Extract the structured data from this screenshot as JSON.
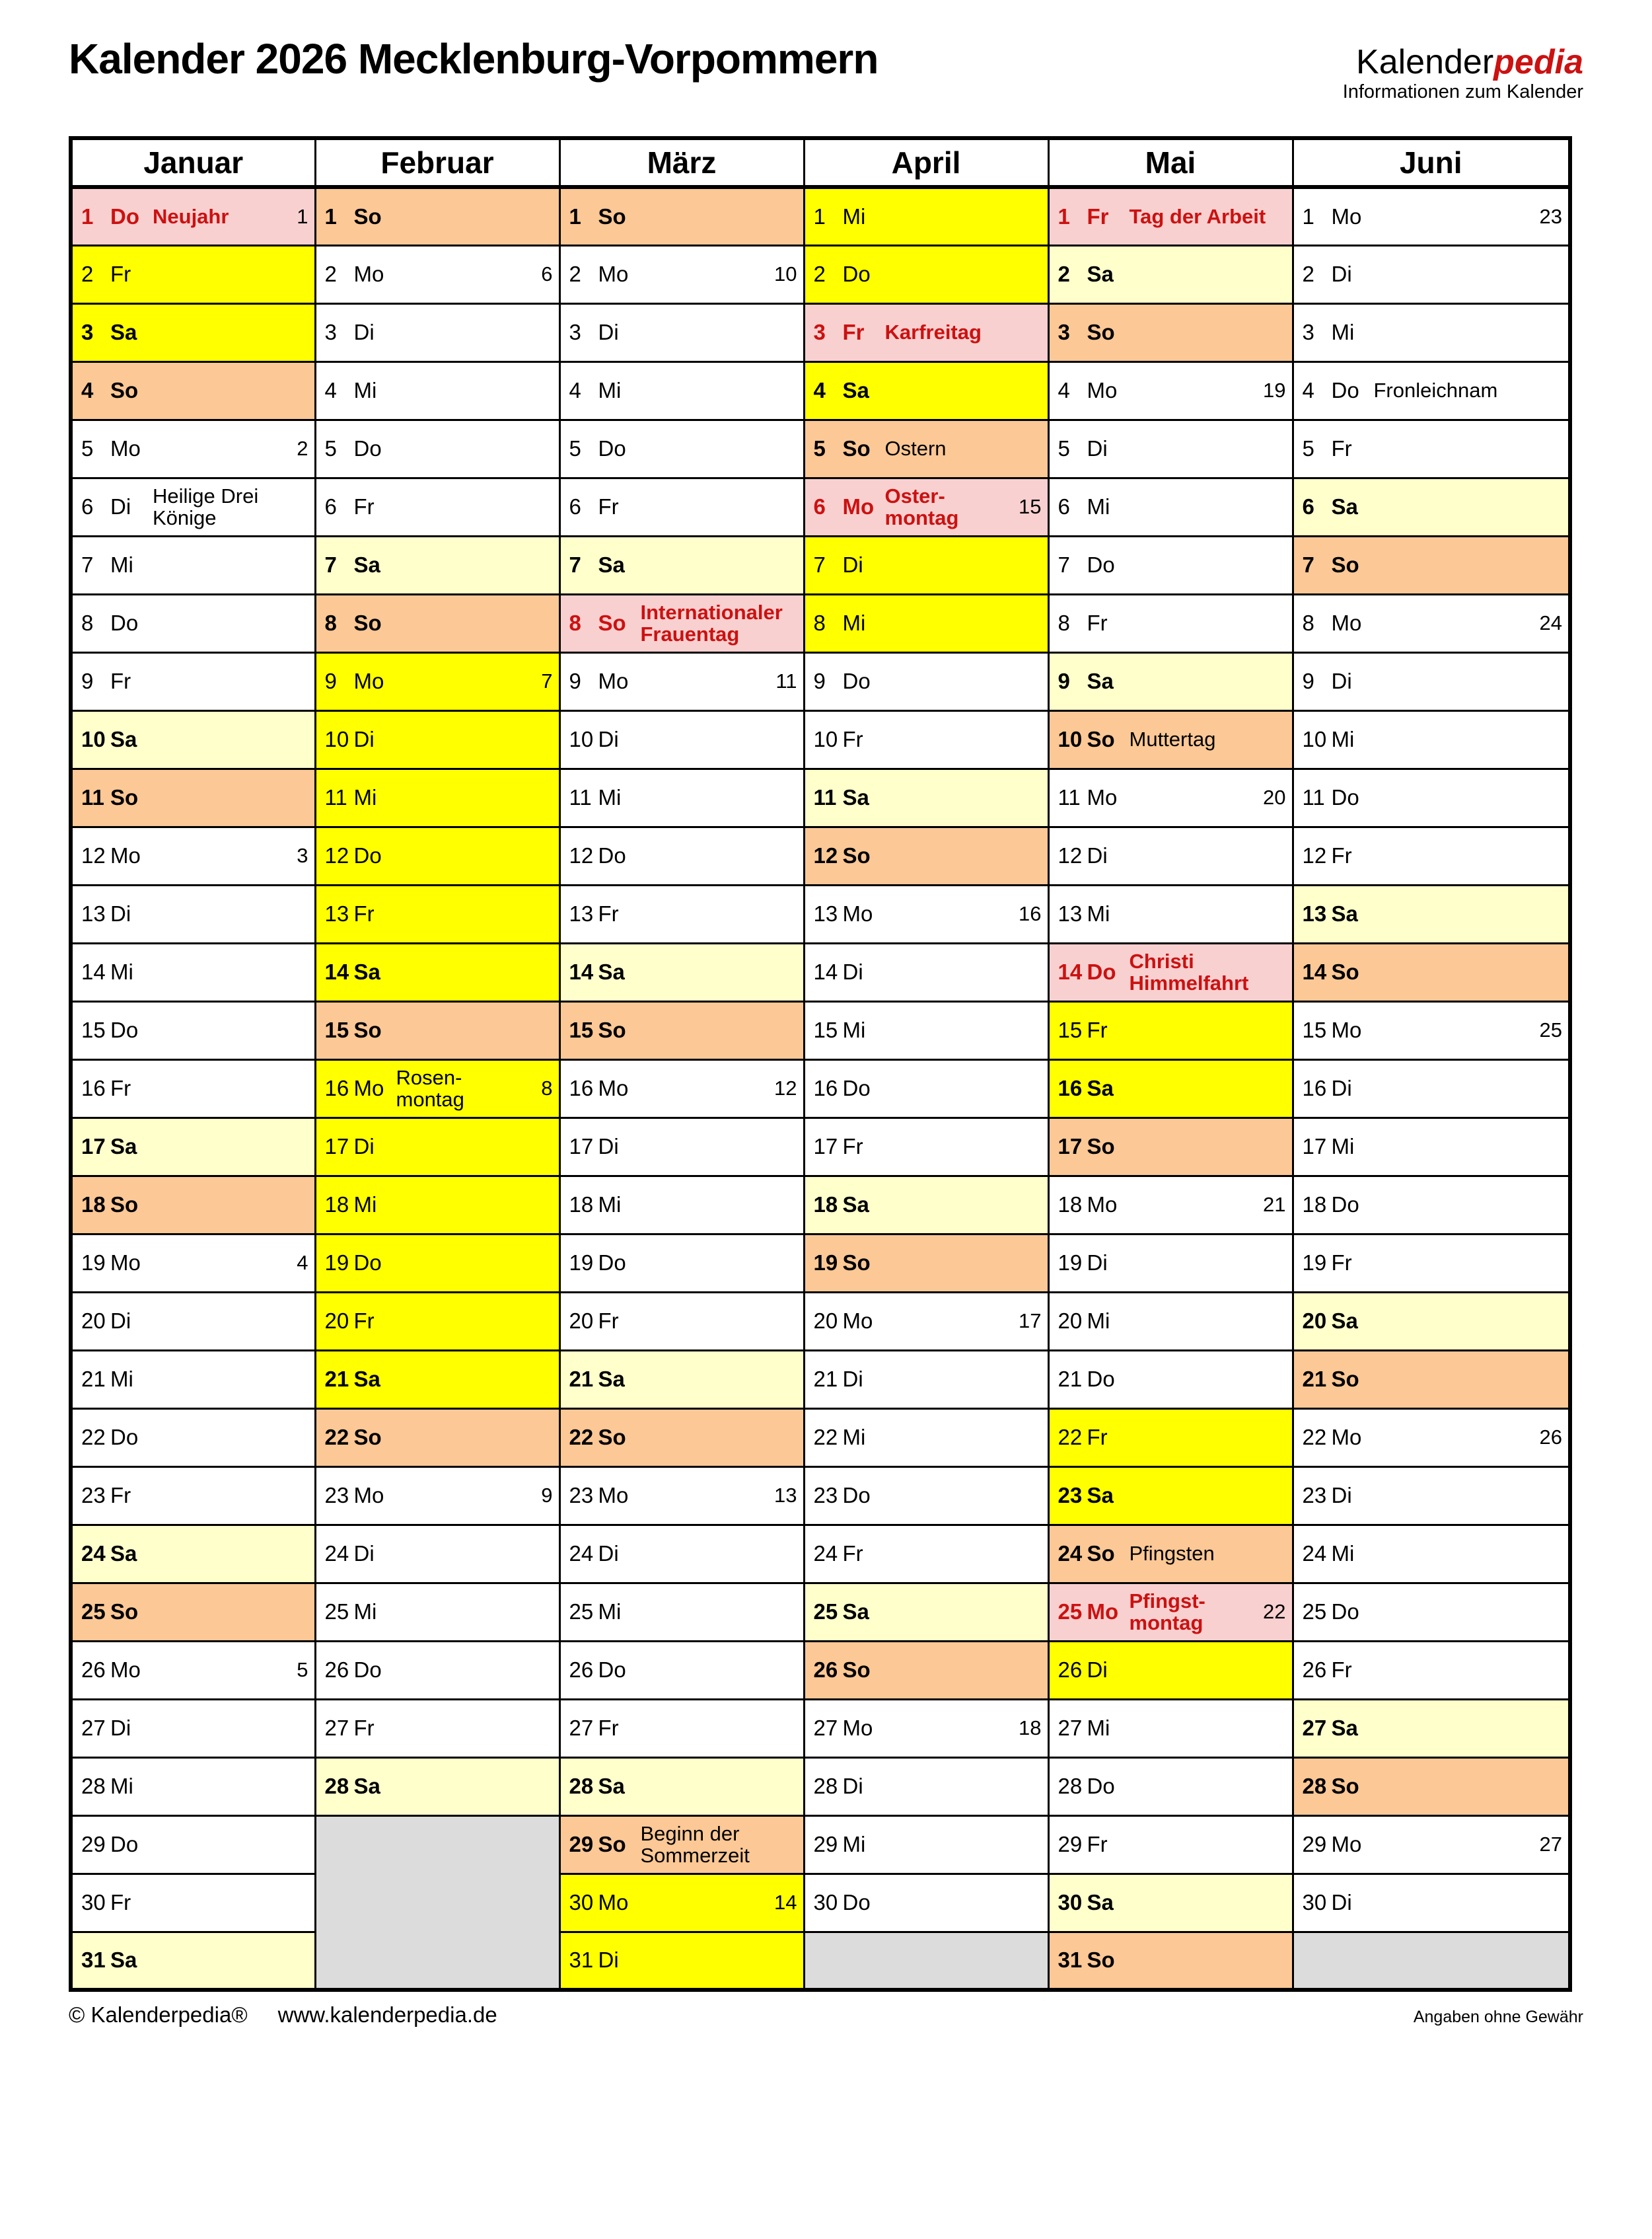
{
  "title": "Kalender 2026 Mecklenburg-Vorpommern",
  "logo": {
    "part1": "Kalender",
    "part2": "pedia",
    "subtitle": "Informationen zum Kalender"
  },
  "footer": {
    "copyright": "© Kalenderpedia®",
    "url": "www.kalenderpedia.de",
    "disclaimer": "Angaben ohne Gewähr"
  },
  "colors": {
    "sunday": "#FBC896",
    "saturday": "#FFFFCC",
    "vacation": "#FFFF00",
    "holiday": "#F9D0D0",
    "empty": "#DCDCDC",
    "red": "#CC1111"
  },
  "table": {
    "rows": 31,
    "months": [
      {
        "name": "Januar",
        "days": [
          {
            "d": 1,
            "wd": "Do",
            "bg": "ho",
            "b": 1,
            "r": 1,
            "n": [
              "Neujahr"
            ],
            "w": "1"
          },
          {
            "d": 2,
            "wd": "Fr",
            "bg": "fe"
          },
          {
            "d": 3,
            "wd": "Sa",
            "bg": "fe",
            "b": 1
          },
          {
            "d": 4,
            "wd": "So",
            "bg": "su",
            "b": 1
          },
          {
            "d": 5,
            "wd": "Mo",
            "w": "2"
          },
          {
            "d": 6,
            "wd": "Di",
            "n": [
              "Heilige Drei",
              "Könige"
            ]
          },
          {
            "d": 7,
            "wd": "Mi"
          },
          {
            "d": 8,
            "wd": "Do"
          },
          {
            "d": 9,
            "wd": "Fr"
          },
          {
            "d": 10,
            "wd": "Sa",
            "bg": "sa",
            "b": 1
          },
          {
            "d": 11,
            "wd": "So",
            "bg": "su",
            "b": 1
          },
          {
            "d": 12,
            "wd": "Mo",
            "w": "3"
          },
          {
            "d": 13,
            "wd": "Di"
          },
          {
            "d": 14,
            "wd": "Mi"
          },
          {
            "d": 15,
            "wd": "Do"
          },
          {
            "d": 16,
            "wd": "Fr"
          },
          {
            "d": 17,
            "wd": "Sa",
            "bg": "sa",
            "b": 1
          },
          {
            "d": 18,
            "wd": "So",
            "bg": "su",
            "b": 1
          },
          {
            "d": 19,
            "wd": "Mo",
            "w": "4"
          },
          {
            "d": 20,
            "wd": "Di"
          },
          {
            "d": 21,
            "wd": "Mi"
          },
          {
            "d": 22,
            "wd": "Do"
          },
          {
            "d": 23,
            "wd": "Fr"
          },
          {
            "d": 24,
            "wd": "Sa",
            "bg": "sa",
            "b": 1
          },
          {
            "d": 25,
            "wd": "So",
            "bg": "su",
            "b": 1
          },
          {
            "d": 26,
            "wd": "Mo",
            "w": "5"
          },
          {
            "d": 27,
            "wd": "Di"
          },
          {
            "d": 28,
            "wd": "Mi"
          },
          {
            "d": 29,
            "wd": "Do"
          },
          {
            "d": 30,
            "wd": "Fr"
          },
          {
            "d": 31,
            "wd": "Sa",
            "bg": "sa",
            "b": 1
          }
        ]
      },
      {
        "name": "Februar",
        "days": [
          {
            "d": 1,
            "wd": "So",
            "bg": "su",
            "b": 1
          },
          {
            "d": 2,
            "wd": "Mo",
            "w": "6"
          },
          {
            "d": 3,
            "wd": "Di"
          },
          {
            "d": 4,
            "wd": "Mi"
          },
          {
            "d": 5,
            "wd": "Do"
          },
          {
            "d": 6,
            "wd": "Fr"
          },
          {
            "d": 7,
            "wd": "Sa",
            "bg": "sa",
            "b": 1
          },
          {
            "d": 8,
            "wd": "So",
            "bg": "su",
            "b": 1
          },
          {
            "d": 9,
            "wd": "Mo",
            "bg": "fe",
            "w": "7"
          },
          {
            "d": 10,
            "wd": "Di",
            "bg": "fe"
          },
          {
            "d": 11,
            "wd": "Mi",
            "bg": "fe"
          },
          {
            "d": 12,
            "wd": "Do",
            "bg": "fe"
          },
          {
            "d": 13,
            "wd": "Fr",
            "bg": "fe"
          },
          {
            "d": 14,
            "wd": "Sa",
            "bg": "fe",
            "b": 1
          },
          {
            "d": 15,
            "wd": "So",
            "bg": "su",
            "b": 1
          },
          {
            "d": 16,
            "wd": "Mo",
            "bg": "fe",
            "n": [
              "Rosen-",
              "montag"
            ],
            "w": "8"
          },
          {
            "d": 17,
            "wd": "Di",
            "bg": "fe"
          },
          {
            "d": 18,
            "wd": "Mi",
            "bg": "fe"
          },
          {
            "d": 19,
            "wd": "Do",
            "bg": "fe"
          },
          {
            "d": 20,
            "wd": "Fr",
            "bg": "fe"
          },
          {
            "d": 21,
            "wd": "Sa",
            "bg": "fe",
            "b": 1
          },
          {
            "d": 22,
            "wd": "So",
            "bg": "su",
            "b": 1
          },
          {
            "d": 23,
            "wd": "Mo",
            "w": "9"
          },
          {
            "d": 24,
            "wd": "Di"
          },
          {
            "d": 25,
            "wd": "Mi"
          },
          {
            "d": 26,
            "wd": "Do"
          },
          {
            "d": 27,
            "wd": "Fr"
          },
          {
            "d": 28,
            "wd": "Sa",
            "bg": "sa",
            "b": 1
          }
        ]
      },
      {
        "name": "März",
        "days": [
          {
            "d": 1,
            "wd": "So",
            "bg": "su",
            "b": 1
          },
          {
            "d": 2,
            "wd": "Mo",
            "w": "10"
          },
          {
            "d": 3,
            "wd": "Di"
          },
          {
            "d": 4,
            "wd": "Mi"
          },
          {
            "d": 5,
            "wd": "Do"
          },
          {
            "d": 6,
            "wd": "Fr"
          },
          {
            "d": 7,
            "wd": "Sa",
            "bg": "sa",
            "b": 1
          },
          {
            "d": 8,
            "wd": "So",
            "bg": "ho",
            "b": 1,
            "r": 1,
            "n": [
              "Internationaler",
              "Frauentag"
            ]
          },
          {
            "d": 9,
            "wd": "Mo",
            "w": "11"
          },
          {
            "d": 10,
            "wd": "Di"
          },
          {
            "d": 11,
            "wd": "Mi"
          },
          {
            "d": 12,
            "wd": "Do"
          },
          {
            "d": 13,
            "wd": "Fr"
          },
          {
            "d": 14,
            "wd": "Sa",
            "bg": "sa",
            "b": 1
          },
          {
            "d": 15,
            "wd": "So",
            "bg": "su",
            "b": 1
          },
          {
            "d": 16,
            "wd": "Mo",
            "w": "12"
          },
          {
            "d": 17,
            "wd": "Di"
          },
          {
            "d": 18,
            "wd": "Mi"
          },
          {
            "d": 19,
            "wd": "Do"
          },
          {
            "d": 20,
            "wd": "Fr"
          },
          {
            "d": 21,
            "wd": "Sa",
            "bg": "sa",
            "b": 1
          },
          {
            "d": 22,
            "wd": "So",
            "bg": "su",
            "b": 1
          },
          {
            "d": 23,
            "wd": "Mo",
            "w": "13"
          },
          {
            "d": 24,
            "wd": "Di"
          },
          {
            "d": 25,
            "wd": "Mi"
          },
          {
            "d": 26,
            "wd": "Do"
          },
          {
            "d": 27,
            "wd": "Fr"
          },
          {
            "d": 28,
            "wd": "Sa",
            "bg": "sa",
            "b": 1
          },
          {
            "d": 29,
            "wd": "So",
            "bg": "su",
            "b": 1,
            "n": [
              "Beginn der",
              "Sommerzeit"
            ]
          },
          {
            "d": 30,
            "wd": "Mo",
            "bg": "fe",
            "w": "14"
          },
          {
            "d": 31,
            "wd": "Di",
            "bg": "fe"
          }
        ]
      },
      {
        "name": "April",
        "days": [
          {
            "d": 1,
            "wd": "Mi",
            "bg": "fe"
          },
          {
            "d": 2,
            "wd": "Do",
            "bg": "fe"
          },
          {
            "d": 3,
            "wd": "Fr",
            "bg": "ho",
            "b": 1,
            "r": 1,
            "n": [
              "Karfreitag"
            ]
          },
          {
            "d": 4,
            "wd": "Sa",
            "bg": "fe",
            "b": 1
          },
          {
            "d": 5,
            "wd": "So",
            "bg": "su",
            "b": 1,
            "n": [
              "Ostern"
            ]
          },
          {
            "d": 6,
            "wd": "Mo",
            "bg": "ho",
            "b": 1,
            "r": 1,
            "n": [
              "Oster-",
              "montag"
            ],
            "w": "15"
          },
          {
            "d": 7,
            "wd": "Di",
            "bg": "fe"
          },
          {
            "d": 8,
            "wd": "Mi",
            "bg": "fe"
          },
          {
            "d": 9,
            "wd": "Do"
          },
          {
            "d": 10,
            "wd": "Fr"
          },
          {
            "d": 11,
            "wd": "Sa",
            "bg": "sa",
            "b": 1
          },
          {
            "d": 12,
            "wd": "So",
            "bg": "su",
            "b": 1
          },
          {
            "d": 13,
            "wd": "Mo",
            "w": "16"
          },
          {
            "d": 14,
            "wd": "Di"
          },
          {
            "d": 15,
            "wd": "Mi"
          },
          {
            "d": 16,
            "wd": "Do"
          },
          {
            "d": 17,
            "wd": "Fr"
          },
          {
            "d": 18,
            "wd": "Sa",
            "bg": "sa",
            "b": 1
          },
          {
            "d": 19,
            "wd": "So",
            "bg": "su",
            "b": 1
          },
          {
            "d": 20,
            "wd": "Mo",
            "w": "17"
          },
          {
            "d": 21,
            "wd": "Di"
          },
          {
            "d": 22,
            "wd": "Mi"
          },
          {
            "d": 23,
            "wd": "Do"
          },
          {
            "d": 24,
            "wd": "Fr"
          },
          {
            "d": 25,
            "wd": "Sa",
            "bg": "sa",
            "b": 1
          },
          {
            "d": 26,
            "wd": "So",
            "bg": "su",
            "b": 1
          },
          {
            "d": 27,
            "wd": "Mo",
            "w": "18"
          },
          {
            "d": 28,
            "wd": "Di"
          },
          {
            "d": 29,
            "wd": "Mi"
          },
          {
            "d": 30,
            "wd": "Do"
          }
        ]
      },
      {
        "name": "Mai",
        "days": [
          {
            "d": 1,
            "wd": "Fr",
            "bg": "ho",
            "b": 1,
            "r": 1,
            "n": [
              "Tag der Arbeit"
            ]
          },
          {
            "d": 2,
            "wd": "Sa",
            "bg": "sa",
            "b": 1
          },
          {
            "d": 3,
            "wd": "So",
            "bg": "su",
            "b": 1
          },
          {
            "d": 4,
            "wd": "Mo",
            "w": "19"
          },
          {
            "d": 5,
            "wd": "Di"
          },
          {
            "d": 6,
            "wd": "Mi"
          },
          {
            "d": 7,
            "wd": "Do"
          },
          {
            "d": 8,
            "wd": "Fr"
          },
          {
            "d": 9,
            "wd": "Sa",
            "bg": "sa",
            "b": 1
          },
          {
            "d": 10,
            "wd": "So",
            "bg": "su",
            "b": 1,
            "n": [
              "Muttertag"
            ]
          },
          {
            "d": 11,
            "wd": "Mo",
            "w": "20"
          },
          {
            "d": 12,
            "wd": "Di"
          },
          {
            "d": 13,
            "wd": "Mi"
          },
          {
            "d": 14,
            "wd": "Do",
            "bg": "ho",
            "b": 1,
            "r": 1,
            "n": [
              "Christi",
              "Himmelfahrt"
            ]
          },
          {
            "d": 15,
            "wd": "Fr",
            "bg": "fe"
          },
          {
            "d": 16,
            "wd": "Sa",
            "bg": "fe",
            "b": 1
          },
          {
            "d": 17,
            "wd": "So",
            "bg": "su",
            "b": 1
          },
          {
            "d": 18,
            "wd": "Mo",
            "w": "21"
          },
          {
            "d": 19,
            "wd": "Di"
          },
          {
            "d": 20,
            "wd": "Mi"
          },
          {
            "d": 21,
            "wd": "Do"
          },
          {
            "d": 22,
            "wd": "Fr",
            "bg": "fe"
          },
          {
            "d": 23,
            "wd": "Sa",
            "bg": "fe",
            "b": 1
          },
          {
            "d": 24,
            "wd": "So",
            "bg": "su",
            "b": 1,
            "n": [
              "Pfingsten"
            ]
          },
          {
            "d": 25,
            "wd": "Mo",
            "bg": "ho",
            "b": 1,
            "r": 1,
            "n": [
              "Pfingst-",
              "montag"
            ],
            "w": "22"
          },
          {
            "d": 26,
            "wd": "Di",
            "bg": "fe"
          },
          {
            "d": 27,
            "wd": "Mi"
          },
          {
            "d": 28,
            "wd": "Do"
          },
          {
            "d": 29,
            "wd": "Fr"
          },
          {
            "d": 30,
            "wd": "Sa",
            "bg": "sa",
            "b": 1
          },
          {
            "d": 31,
            "wd": "So",
            "bg": "su",
            "b": 1
          }
        ]
      },
      {
        "name": "Juni",
        "days": [
          {
            "d": 1,
            "wd": "Mo",
            "w": "23"
          },
          {
            "d": 2,
            "wd": "Di"
          },
          {
            "d": 3,
            "wd": "Mi"
          },
          {
            "d": 4,
            "wd": "Do",
            "n": [
              "Fronleichnam"
            ]
          },
          {
            "d": 5,
            "wd": "Fr"
          },
          {
            "d": 6,
            "wd": "Sa",
            "bg": "sa",
            "b": 1
          },
          {
            "d": 7,
            "wd": "So",
            "bg": "su",
            "b": 1
          },
          {
            "d": 8,
            "wd": "Mo",
            "w": "24"
          },
          {
            "d": 9,
            "wd": "Di"
          },
          {
            "d": 10,
            "wd": "Mi"
          },
          {
            "d": 11,
            "wd": "Do"
          },
          {
            "d": 12,
            "wd": "Fr"
          },
          {
            "d": 13,
            "wd": "Sa",
            "bg": "sa",
            "b": 1
          },
          {
            "d": 14,
            "wd": "So",
            "bg": "su",
            "b": 1
          },
          {
            "d": 15,
            "wd": "Mo",
            "w": "25"
          },
          {
            "d": 16,
            "wd": "Di"
          },
          {
            "d": 17,
            "wd": "Mi"
          },
          {
            "d": 18,
            "wd": "Do"
          },
          {
            "d": 19,
            "wd": "Fr"
          },
          {
            "d": 20,
            "wd": "Sa",
            "bg": "sa",
            "b": 1
          },
          {
            "d": 21,
            "wd": "So",
            "bg": "su",
            "b": 1
          },
          {
            "d": 22,
            "wd": "Mo",
            "w": "26"
          },
          {
            "d": 23,
            "wd": "Di"
          },
          {
            "d": 24,
            "wd": "Mi"
          },
          {
            "d": 25,
            "wd": "Do"
          },
          {
            "d": 26,
            "wd": "Fr"
          },
          {
            "d": 27,
            "wd": "Sa",
            "bg": "sa",
            "b": 1
          },
          {
            "d": 28,
            "wd": "So",
            "bg": "su",
            "b": 1
          },
          {
            "d": 29,
            "wd": "Mo",
            "w": "27"
          },
          {
            "d": 30,
            "wd": "Di"
          }
        ]
      }
    ]
  }
}
